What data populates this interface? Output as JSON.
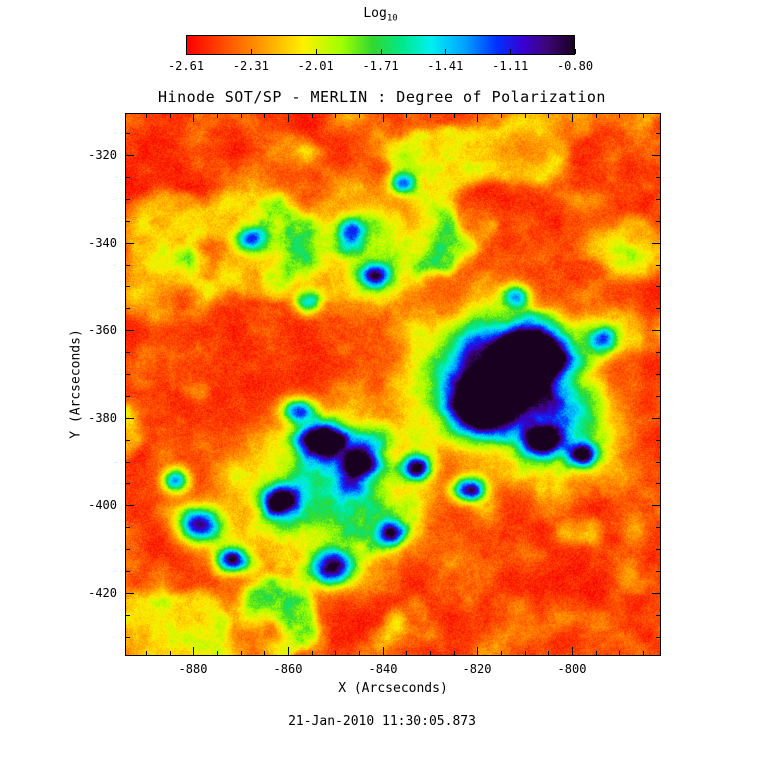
{
  "chart_data": {
    "type": "heatmap",
    "title": "Hinode SOT/SP - MERLIN : Degree of Polarization",
    "xlabel": "X (Arcseconds)",
    "ylabel": "Y (Arcseconds)",
    "timestamp": "21-Jan-2010 11:30:05.873",
    "x_range": [
      -894.4,
      -781.2
    ],
    "y_range": [
      -434.4,
      -310.4
    ],
    "x_ticks": [
      -880,
      -860,
      -840,
      -820,
      -800
    ],
    "y_ticks": [
      -320,
      -340,
      -360,
      -380,
      -400,
      -420
    ],
    "x_minor_step": 5,
    "y_minor_step": 5,
    "grid": false,
    "colorbar": {
      "label": "Log",
      "label_sub": "10",
      "min": -2.61,
      "max": -0.8,
      "ticks": [
        "-2.61",
        "-2.31",
        "-2.01",
        "-1.71",
        "-1.41",
        "-1.11",
        "-0.80"
      ],
      "position": "top"
    },
    "colormap": [
      {
        "pos": 0.0,
        "color": "#fa0000"
      },
      {
        "pos": 0.1,
        "color": "#ff5000"
      },
      {
        "pos": 0.2,
        "color": "#ffa000"
      },
      {
        "pos": 0.3,
        "color": "#fff000"
      },
      {
        "pos": 0.4,
        "color": "#a0ff00"
      },
      {
        "pos": 0.48,
        "color": "#30d830"
      },
      {
        "pos": 0.56,
        "color": "#00e890"
      },
      {
        "pos": 0.63,
        "color": "#00f0f0"
      },
      {
        "pos": 0.72,
        "color": "#00a0ff"
      },
      {
        "pos": 0.8,
        "color": "#0030ff"
      },
      {
        "pos": 0.87,
        "color": "#3a00d0"
      },
      {
        "pos": 0.93,
        "color": "#3c0677"
      },
      {
        "pos": 1.0,
        "color": "#190021"
      }
    ],
    "background_log10": -2.5,
    "features": [
      {
        "x": -815,
        "y": -371,
        "sx": 8.5,
        "sy": 7.5,
        "peak": -0.82,
        "note": "large dark pore cluster"
      },
      {
        "x": -820,
        "y": -378,
        "sx": 4,
        "sy": 3.5,
        "peak": -1.0
      },
      {
        "x": -809,
        "y": -365,
        "sx": 4,
        "sy": 3.5,
        "peak": -1.0
      },
      {
        "x": -807,
        "y": -385,
        "sx": 2.8,
        "sy": 2.4,
        "peak": -1.05
      },
      {
        "x": -798,
        "y": -388,
        "sx": 2.2,
        "sy": 2,
        "peak": -1.3
      },
      {
        "x": -853,
        "y": -385,
        "sx": 3.2,
        "sy": 2.8,
        "peak": -0.95,
        "note": "blue pore"
      },
      {
        "x": -845,
        "y": -390,
        "sx": 3,
        "sy": 2.6,
        "peak": -1.0
      },
      {
        "x": -858,
        "y": -378,
        "sx": 2.4,
        "sy": 2,
        "peak": -1.2
      },
      {
        "x": -851,
        "y": -414,
        "sx": 3.2,
        "sy": 2.8,
        "peak": -0.95,
        "note": "blue pore"
      },
      {
        "x": -862,
        "y": -399,
        "sx": 2.6,
        "sy": 2.4,
        "peak": -1.1
      },
      {
        "x": -879,
        "y": -404,
        "sx": 3.2,
        "sy": 2.8,
        "peak": -1.0,
        "note": "blue pore"
      },
      {
        "x": -872,
        "y": -412,
        "sx": 2.4,
        "sy": 2,
        "peak": -1.35
      },
      {
        "x": -884,
        "y": -394,
        "sx": 2,
        "sy": 2,
        "peak": -1.4
      },
      {
        "x": -822,
        "y": -396,
        "sx": 2.4,
        "sy": 2,
        "peak": -1.15
      },
      {
        "x": -838,
        "y": -406,
        "sx": 2,
        "sy": 2,
        "peak": -1.4
      },
      {
        "x": -833,
        "y": -391,
        "sx": 2.2,
        "sy": 2,
        "peak": -1.25
      },
      {
        "x": -842,
        "y": -347,
        "sx": 2.4,
        "sy": 2,
        "peak": -1.5
      },
      {
        "x": -847,
        "y": -337,
        "sx": 2,
        "sy": 2,
        "peak": -1.6
      },
      {
        "x": -868,
        "y": -339,
        "sx": 2.4,
        "sy": 2,
        "peak": -1.55
      },
      {
        "x": -836,
        "y": -326,
        "sx": 2,
        "sy": 1.8,
        "peak": -1.55
      },
      {
        "x": -812,
        "y": -352,
        "sx": 2,
        "sy": 2,
        "peak": -1.6
      },
      {
        "x": -794,
        "y": -362,
        "sx": 2,
        "sy": 2,
        "peak": -1.6
      },
      {
        "x": -856,
        "y": -353,
        "sx": 2,
        "sy": 2,
        "peak": -1.65
      },
      {
        "x": -853,
        "y": -397,
        "sx": 13,
        "sy": 11,
        "peak": -1.85,
        "note": "plage halo"
      },
      {
        "x": -815,
        "y": -371,
        "sx": 12,
        "sy": 11,
        "peak": -1.8,
        "note": "halo"
      },
      {
        "x": -843,
        "y": -340,
        "sx": 9,
        "sy": 8,
        "peak": -1.95,
        "note": "halo"
      },
      {
        "x": -800,
        "y": -383,
        "sx": 7,
        "sy": 6,
        "peak": -1.95,
        "note": "halo"
      }
    ]
  }
}
